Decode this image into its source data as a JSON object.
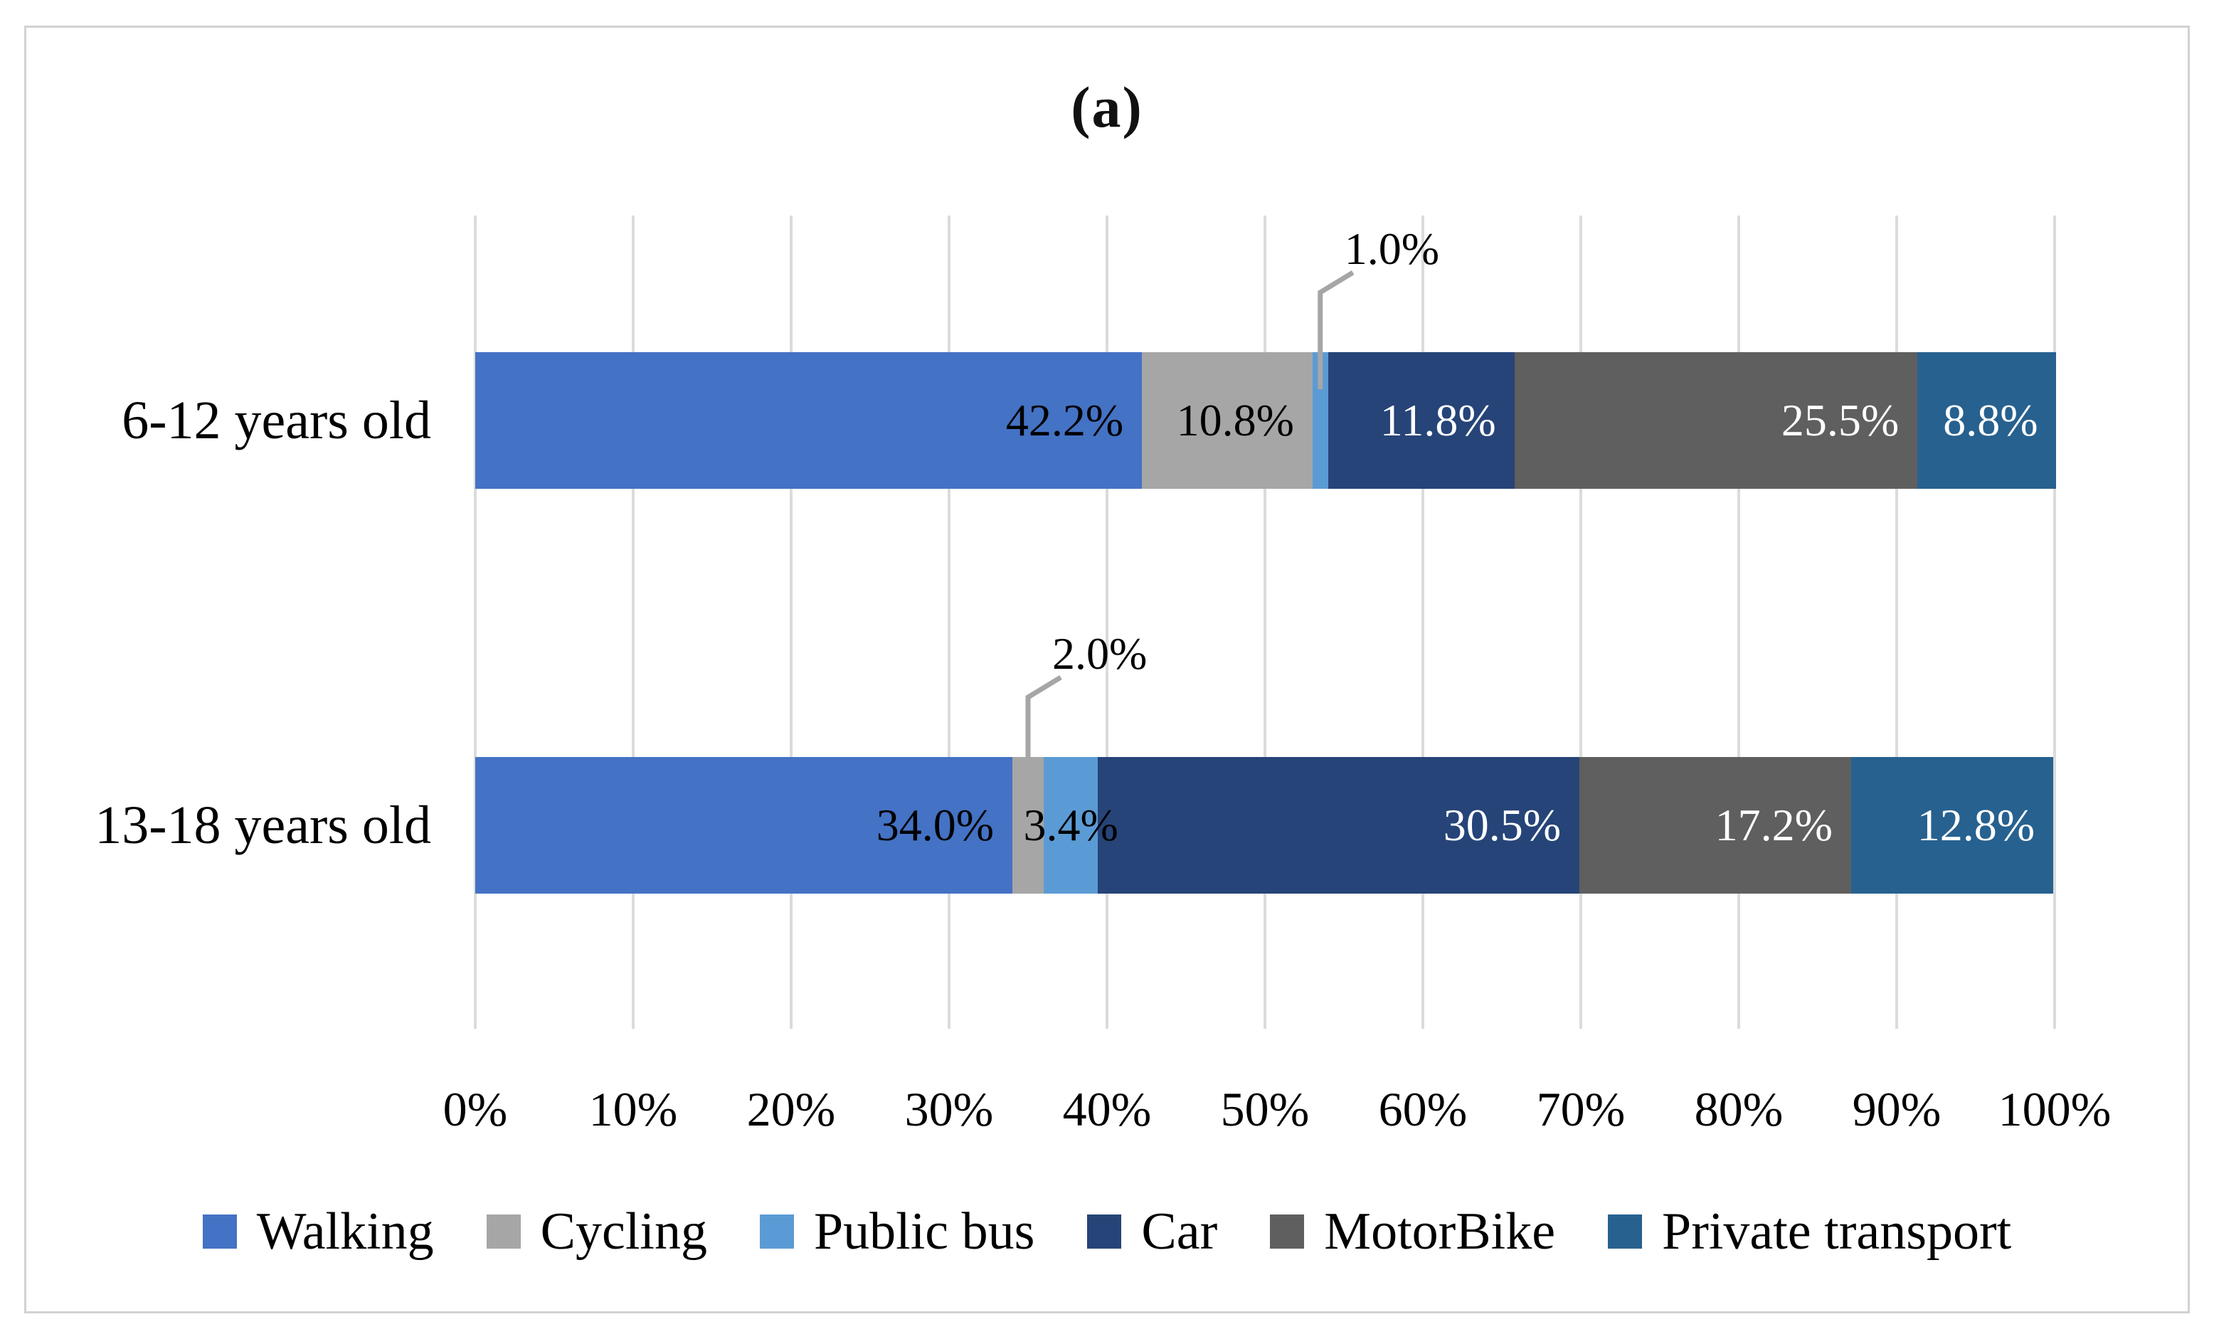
{
  "chart_data": {
    "type": "bar",
    "orientation": "horizontal-stacked",
    "title": "(a)",
    "categories": [
      "6-12 years old",
      "13-18 years old"
    ],
    "series": [
      {
        "name": "Walking",
        "color": "#4472C4",
        "label_color": "#000000",
        "values": [
          42.2,
          34.0
        ]
      },
      {
        "name": "Cycling",
        "color": "#A6A6A6",
        "label_color": "#000000",
        "values": [
          10.8,
          2.0
        ]
      },
      {
        "name": "Public bus",
        "color": "#5B9BD5",
        "label_color": "#000000",
        "values": [
          1.0,
          3.4
        ]
      },
      {
        "name": "Car",
        "color": "#264478",
        "label_color": "#FFFFFF",
        "values": [
          11.8,
          30.5
        ]
      },
      {
        "name": "MotorBike",
        "color": "#5F5F5F",
        "label_color": "#FFFFFF",
        "values": [
          25.5,
          17.2
        ]
      },
      {
        "name": "Private transport",
        "color": "#27618F",
        "label_color": "#FFFFFF",
        "values": [
          8.8,
          12.8
        ]
      }
    ],
    "data_labels": [
      [
        "42.2%",
        "10.8%",
        "1.0%",
        "11.8%",
        "25.5%",
        "8.8%"
      ],
      [
        "34.0%",
        "2.0%",
        "3.4%",
        "30.5%",
        "17.2%",
        "12.8%"
      ]
    ],
    "callouts": [
      {
        "category": 0,
        "series": 2,
        "text": "1.0%"
      },
      {
        "category": 1,
        "series": 1,
        "text": "2.0%"
      }
    ],
    "x_ticks": [
      "0%",
      "10%",
      "20%",
      "30%",
      "40%",
      "50%",
      "60%",
      "70%",
      "80%",
      "90%",
      "100%"
    ],
    "xlim": [
      0,
      100
    ],
    "grid": true,
    "legend_position": "bottom",
    "legend": [
      "Walking",
      "Cycling",
      "Public bus",
      "Car",
      "MotorBike",
      "Private transport"
    ]
  },
  "colors": {
    "gridline": "#DBDBDB",
    "figure_border": "#D3D1D1",
    "leader_line": "#A6A6A6",
    "background": "#FFFFFF"
  }
}
